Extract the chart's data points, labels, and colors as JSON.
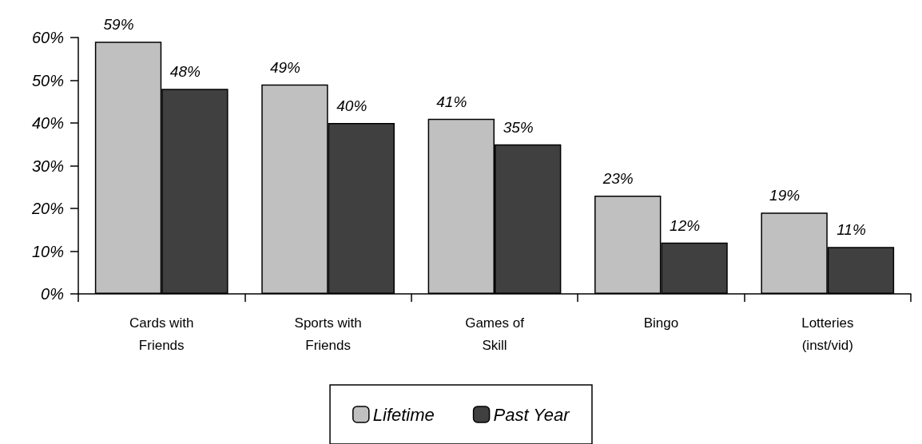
{
  "chart_data": {
    "type": "bar",
    "categories": [
      "Cards with\nFriends",
      "Sports with\nFriends",
      "Games of\nSkill",
      "Bingo",
      "Lotteries\n(inst/vid)"
    ],
    "series": [
      {
        "name": "Lifetime",
        "color": "#c0c0c0",
        "values": [
          59,
          49,
          41,
          23,
          19
        ]
      },
      {
        "name": "Past Year",
        "color": "#404040",
        "values": [
          48,
          40,
          35,
          12,
          11
        ]
      }
    ],
    "ylim": [
      0,
      60
    ],
    "yticks": [
      {
        "value": 0,
        "label": "0%"
      },
      {
        "value": 10,
        "label": "10%"
      },
      {
        "value": 20,
        "label": "20%"
      },
      {
        "value": 30,
        "label": "30%"
      },
      {
        "value": 40,
        "label": "40%"
      },
      {
        "value": 50,
        "label": "50%"
      },
      {
        "value": 60,
        "label": "60%"
      }
    ],
    "value_labels": [
      [
        "59%",
        "49%",
        "41%",
        "23%",
        "19%"
      ],
      [
        "48%",
        "40%",
        "35%",
        "12%",
        "11%"
      ]
    ],
    "grid": false,
    "legend": "bottom"
  }
}
